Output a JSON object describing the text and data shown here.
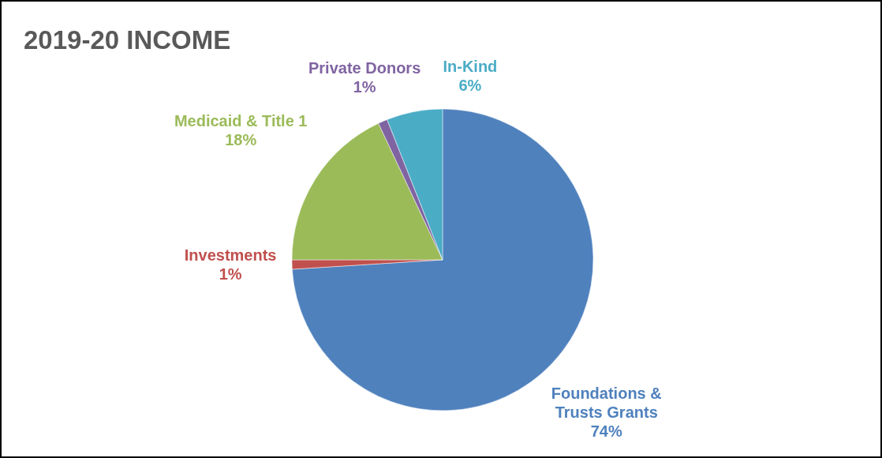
{
  "chart_data": {
    "type": "pie",
    "title": "2019-20 INCOME",
    "categories": [
      "Foundations & Trusts Grants",
      "Investments",
      "Medicaid & Title 1",
      "Private Donors",
      "In-Kind"
    ],
    "values": [
      74,
      1,
      18,
      1,
      6
    ],
    "colors": [
      "#4f81bd",
      "#c0504d",
      "#9bbb59",
      "#8064a2",
      "#4bacc6"
    ],
    "value_labels": [
      "74%",
      "1%",
      "18%",
      "1%",
      "6%"
    ]
  }
}
